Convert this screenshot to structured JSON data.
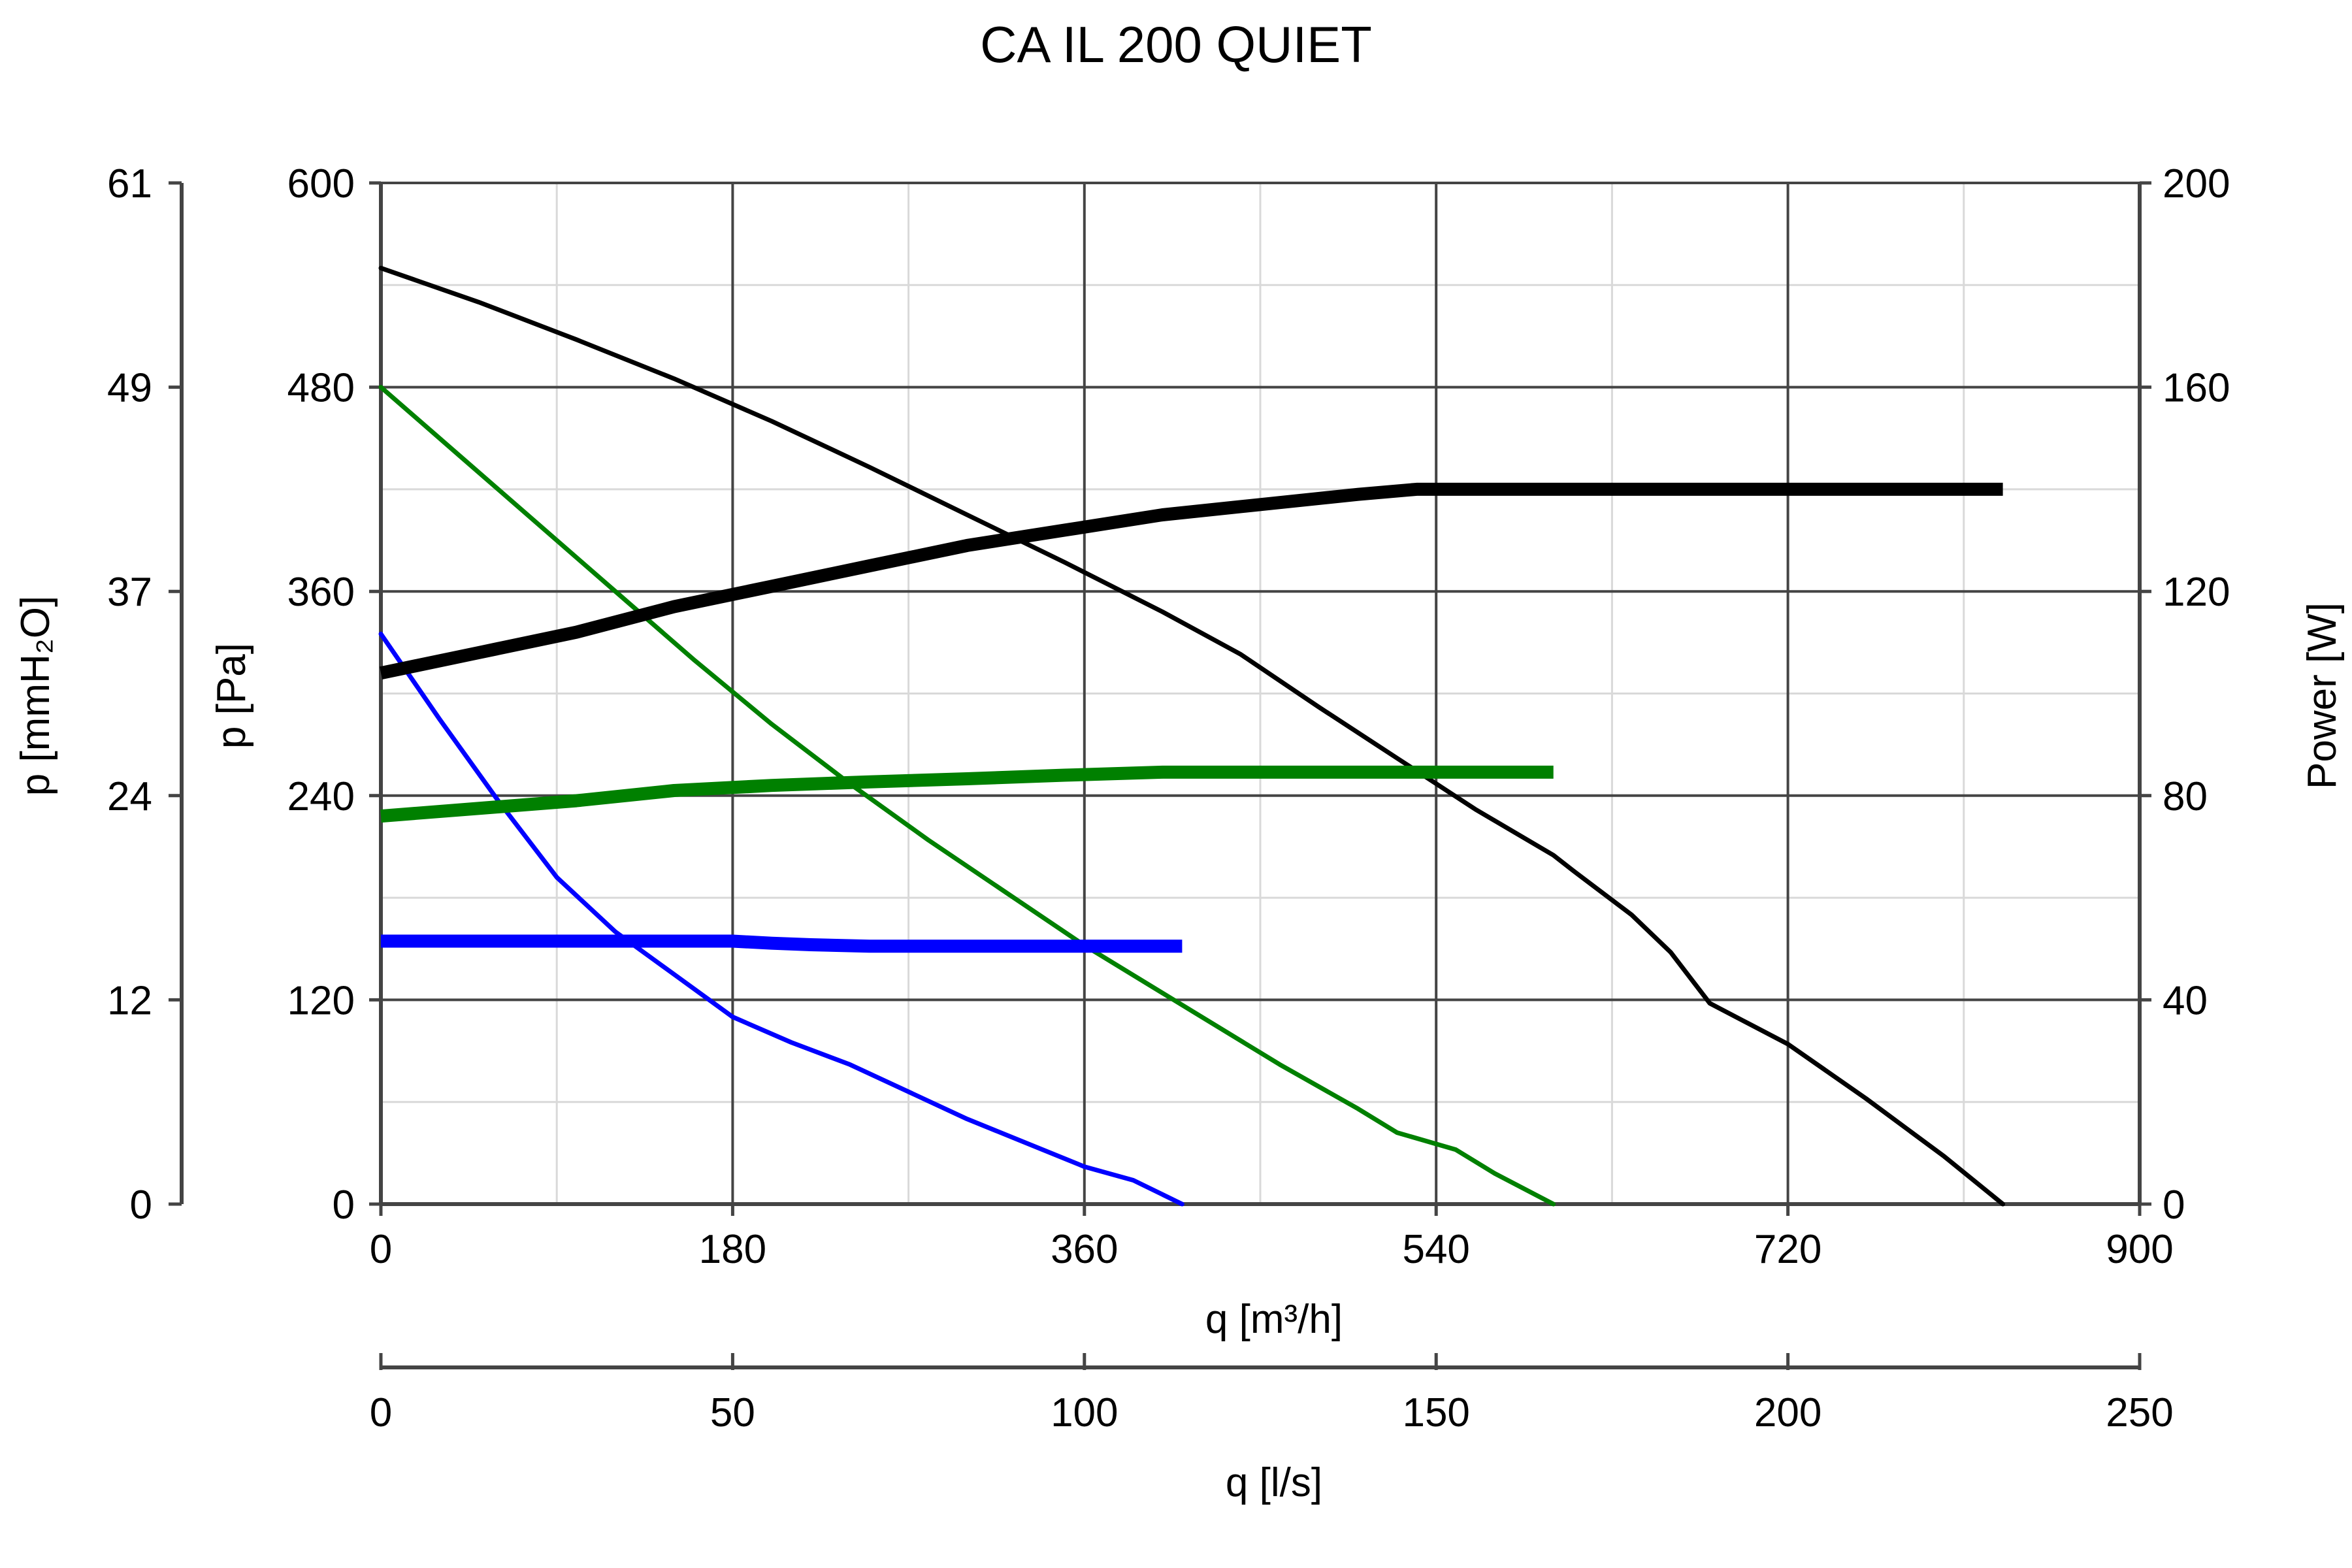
{
  "chart_data": {
    "type": "line",
    "title": "CA IL 200 QUIET",
    "xlabel": "q [m³/h]",
    "x2label": "q [l/s]",
    "ylabel": "p [Pa]",
    "ylabel_left": "p [mmH₂O]",
    "ylabel_right": "Power [W]",
    "xlim": [
      0,
      900
    ],
    "x2lim": [
      0,
      250
    ],
    "ylim": [
      0,
      600
    ],
    "ylim_left": [
      0,
      61
    ],
    "ylim_right": [
      0,
      200
    ],
    "x_ticks": [
      "0",
      "180",
      "360",
      "540",
      "720",
      "900"
    ],
    "x2_ticks": [
      "0",
      "50",
      "100",
      "150",
      "200",
      "250"
    ],
    "y_ticks": [
      "0",
      "120",
      "240",
      "360",
      "480",
      "600"
    ],
    "y_left_ticks": [
      "0",
      "12",
      "24",
      "37",
      "49",
      "61"
    ],
    "y_right_ticks": [
      "0",
      "40",
      "80",
      "120",
      "160",
      "200"
    ],
    "grid": true,
    "series": [
      {
        "axis": "pressure",
        "color": "#000000",
        "weight": "thin",
        "x": [
          0,
          50,
          100,
          150,
          200,
          250,
          300,
          350,
          400,
          440,
          480,
          520,
          560,
          600,
          610,
          640,
          660,
          680,
          700,
          720,
          760,
          800,
          830
        ],
        "y": [
          550,
          530,
          508,
          485,
          460,
          433,
          405,
          377,
          348,
          323,
          292,
          262,
          232,
          205,
          196,
          170,
          148,
          118,
          106,
          94,
          62,
          28,
          0
        ]
      },
      {
        "axis": "pressure",
        "color": "#008000",
        "weight": "thin",
        "x": [
          0,
          40,
          80,
          120,
          160,
          200,
          240,
          280,
          320,
          360,
          380,
          420,
          460,
          500,
          520,
          550,
          570,
          600
        ],
        "y": [
          480,
          440,
          400,
          360,
          320,
          282,
          247,
          214,
          183,
          152,
          138,
          110,
          82,
          56,
          42,
          32,
          18,
          0
        ]
      },
      {
        "axis": "pressure",
        "color": "#0000ff",
        "weight": "thin",
        "x": [
          0,
          30,
          60,
          90,
          120,
          150,
          180,
          210,
          240,
          270,
          300,
          330,
          360,
          385,
          410
        ],
        "y": [
          335,
          285,
          237,
          192,
          160,
          135,
          110,
          95,
          82,
          66,
          50,
          36,
          22,
          14,
          0
        ]
      },
      {
        "axis": "power",
        "color": "#000000",
        "weight": "thick",
        "x": [
          0,
          50,
          100,
          150,
          200,
          250,
          300,
          350,
          400,
          450,
          500,
          530,
          560,
          600,
          700,
          830
        ],
        "y": [
          104,
          108,
          112,
          117,
          121,
          125,
          129,
          132,
          135,
          137,
          139,
          140,
          140,
          140,
          140,
          140
        ]
      },
      {
        "axis": "power",
        "color": "#008000",
        "weight": "thick",
        "x": [
          0,
          100,
          150,
          200,
          250,
          300,
          350,
          400,
          500,
          600
        ],
        "y": [
          76,
          79,
          81,
          82,
          82.7,
          83.3,
          84,
          84.6,
          84.6,
          84.6
        ]
      },
      {
        "axis": "power",
        "color": "#0000ff",
        "weight": "thick",
        "x": [
          0,
          100,
          180,
          200,
          220,
          250,
          300,
          350,
          410
        ],
        "y": [
          51.5,
          51.5,
          51.5,
          51.1,
          50.8,
          50.5,
          50.5,
          50.5,
          50.5
        ]
      }
    ]
  }
}
